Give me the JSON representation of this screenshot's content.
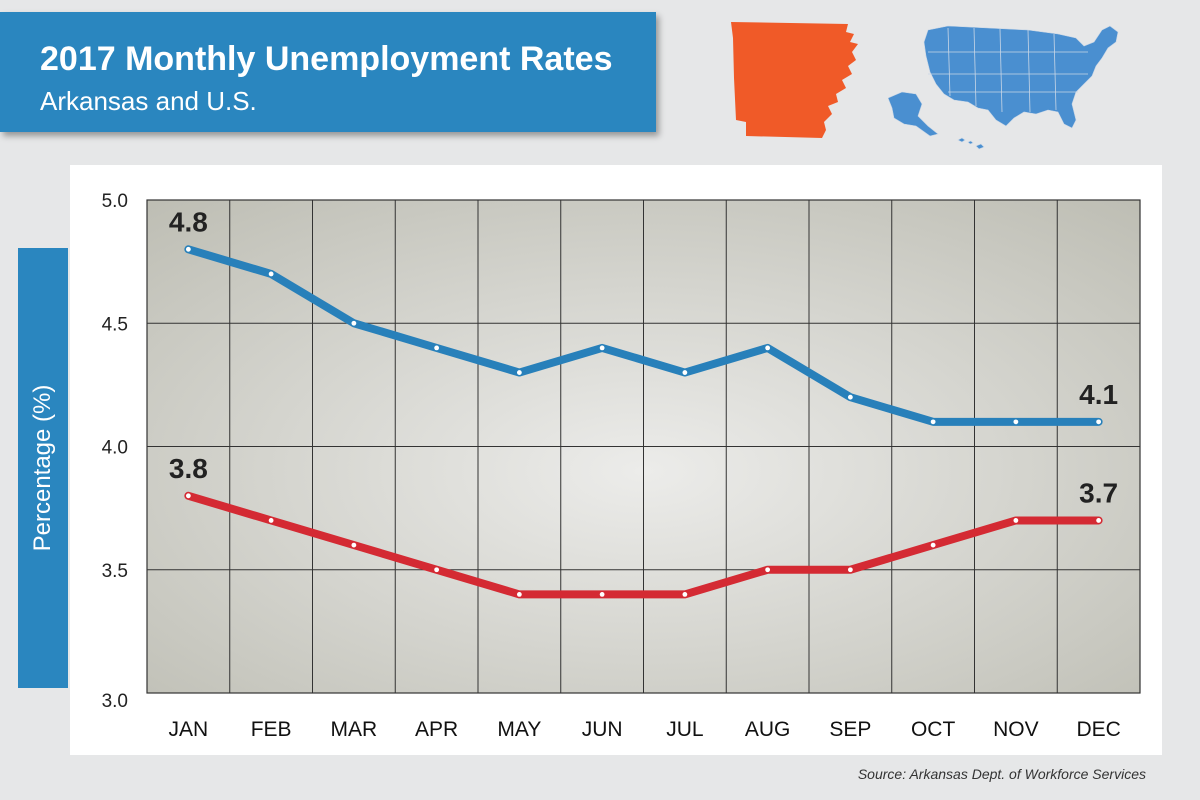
{
  "header": {
    "title": "2017 Monthly Unemployment Rates",
    "subtitle": "Arkansas and U.S."
  },
  "footer": {
    "source": "Source: Arkansas Dept. of Workforce Services"
  },
  "maps": {
    "state_icon": "arkansas-map-icon",
    "country_icon": "us-map-icon",
    "state_color": "#f05a28",
    "country_color": "#4a8fd0"
  },
  "chart_data": {
    "type": "line",
    "title": "2017 Monthly Unemployment Rates",
    "subtitle": "Arkansas and U.S.",
    "ylabel": "Percentage (%)",
    "xlabel": "",
    "categories": [
      "JAN",
      "FEB",
      "MAR",
      "APR",
      "MAY",
      "JUN",
      "JUL",
      "AUG",
      "SEP",
      "OCT",
      "NOV",
      "DEC"
    ],
    "ylim": [
      3.0,
      5.0
    ],
    "yticks": [
      "3.0",
      "3.5",
      "4.0",
      "4.5",
      "5.0"
    ],
    "grid": true,
    "series": [
      {
        "color": "#2880ba",
        "values": [
          4.8,
          4.7,
          4.5,
          4.4,
          4.3,
          4.4,
          4.3,
          4.4,
          4.2,
          4.1,
          4.1,
          4.1
        ],
        "labels": [
          {
            "index": 0,
            "text": "4.8"
          },
          {
            "index": 11,
            "text": "4.1"
          }
        ]
      },
      {
        "color": "#d42a33",
        "values": [
          3.8,
          3.7,
          3.6,
          3.5,
          3.4,
          3.4,
          3.4,
          3.5,
          3.5,
          3.6,
          3.7,
          3.7
        ],
        "labels": [
          {
            "index": 0,
            "text": "3.8"
          },
          {
            "index": 11,
            "text": "3.7"
          }
        ]
      }
    ]
  }
}
